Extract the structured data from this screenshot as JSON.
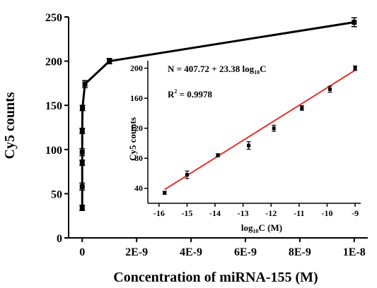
{
  "chart_data": [
    {
      "type": "line",
      "xlabel": "Concentration of miRNA-155 (M)",
      "ylabel": "Cy5 counts",
      "xlim": [
        -5e-10,
        1.05e-08
      ],
      "ylim": [
        0,
        250
      ],
      "x_ticks": [
        0,
        2e-09,
        4e-09,
        6e-09,
        8e-09,
        1e-08
      ],
      "x_tick_labels": [
        "0",
        "2E-9",
        "4E-9",
        "6E-9",
        "8E-9",
        "1E-8"
      ],
      "y_ticks": [
        0,
        50,
        100,
        150,
        200,
        250
      ],
      "y_tick_labels": [
        "0",
        "50",
        "100",
        "150",
        "200",
        "250"
      ],
      "series": [
        {
          "color": "#000000",
          "x": [
            1e-16,
            1e-15,
            1e-14,
            1e-13,
            1e-12,
            1e-11,
            1e-10,
            1e-09,
            1e-08
          ],
          "y": [
            34,
            58,
            85,
            97,
            121,
            147,
            174,
            200,
            244
          ],
          "err": [
            3,
            4,
            3,
            4,
            3,
            3,
            4,
            3,
            5
          ]
        }
      ]
    },
    {
      "type": "scatter",
      "xlabel": "log₁₀C (M)",
      "ylabel": "Cy5 counts",
      "xlim": [
        -16.4,
        -8.8
      ],
      "ylim": [
        20,
        210
      ],
      "x_ticks": [
        -16,
        -15,
        -14,
        -13,
        -12,
        -11,
        -10,
        -9
      ],
      "x_tick_labels": [
        "-16",
        "-15",
        "-14",
        "-13",
        "-12",
        "-11",
        "-10",
        "-9"
      ],
      "y_ticks": [
        40,
        80,
        120,
        160,
        200
      ],
      "y_tick_labels": [
        "40",
        "80",
        "120",
        "160",
        "200"
      ],
      "series": [
        {
          "color": "#000000",
          "x": [
            -15.8,
            -15,
            -13.9,
            -12.8,
            -11.9,
            -10.9,
            -9.9,
            -9
          ],
          "y": [
            34,
            58,
            84,
            97,
            120,
            147,
            172,
            200
          ],
          "err": [
            2,
            5,
            2,
            5,
            4,
            3,
            4,
            3
          ]
        }
      ],
      "fit": {
        "color": "#e8312a",
        "intercept": 407.72,
        "slope": 23.38,
        "x_range": [
          -15.8,
          -9
        ]
      },
      "annotations": {
        "equation_prefix": "N = 407.72 + 23.38 log",
        "equation_sub": "10",
        "equation_suffix": "C",
        "r2_prefix": "R",
        "r2_sup": "2",
        "r2_suffix": " = 0.9978"
      }
    }
  ],
  "main_xlabel_text": "Concentration of miRNA-155 (M)",
  "main_ylabel_text": "Cy5 counts",
  "inset_ylabel_text": "Cy5 counts",
  "inset_xlabel_prefix": "log",
  "inset_xlabel_sub": "10",
  "inset_xlabel_suffix": "C (M)"
}
